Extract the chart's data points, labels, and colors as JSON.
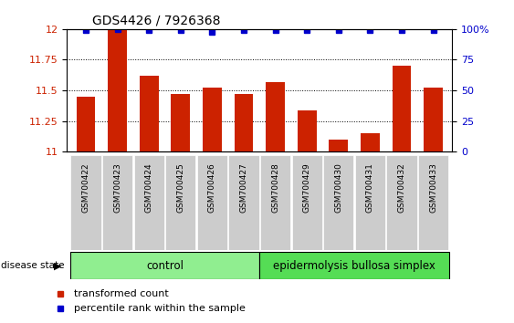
{
  "title": "GDS4426 / 7926368",
  "samples": [
    "GSM700422",
    "GSM700423",
    "GSM700424",
    "GSM700425",
    "GSM700426",
    "GSM700427",
    "GSM700428",
    "GSM700429",
    "GSM700430",
    "GSM700431",
    "GSM700432",
    "GSM700433"
  ],
  "bar_values": [
    11.45,
    11.99,
    11.62,
    11.47,
    11.52,
    11.47,
    11.57,
    11.34,
    11.1,
    11.15,
    11.7,
    11.52
  ],
  "percentile_values": [
    99,
    100,
    99,
    99,
    98,
    99,
    99,
    99,
    99,
    99,
    99,
    99
  ],
  "bar_color": "#cc2200",
  "percentile_color": "#0000cc",
  "ylim_left": [
    11,
    12
  ],
  "yticks_left": [
    11,
    11.25,
    11.5,
    11.75,
    12
  ],
  "ylim_right": [
    0,
    100
  ],
  "yticks_right": [
    0,
    25,
    50,
    75,
    100
  ],
  "yticklabels_right": [
    "0",
    "25",
    "50",
    "75",
    "100%"
  ],
  "control_samples": 6,
  "control_label": "control",
  "disease_label": "epidermolysis bullosa simplex",
  "disease_state_label": "disease state",
  "legend_bar_label": "transformed count",
  "legend_pct_label": "percentile rank within the sample",
  "control_color": "#90ee90",
  "disease_color": "#55dd55",
  "xlabel_bg": "#cccccc",
  "title_fontsize": 10,
  "tick_fontsize": 8,
  "bar_width": 0.6
}
